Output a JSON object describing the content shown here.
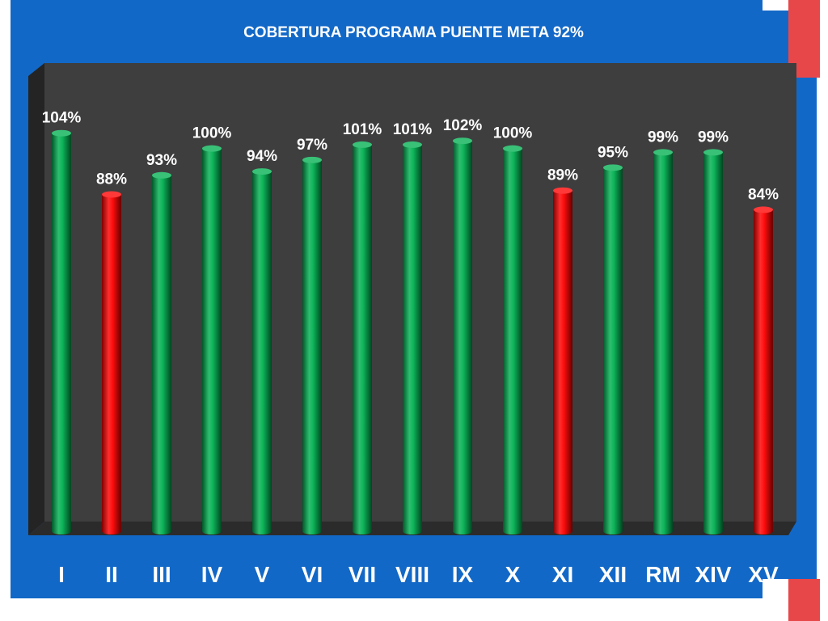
{
  "chart_data": {
    "type": "bar",
    "title": "COBERTURA PROGRAMA PUENTE META 92%",
    "xlabel": "",
    "ylabel": "",
    "categories": [
      "I",
      "II",
      "III",
      "IV",
      "V",
      "VI",
      "VII",
      "VIII",
      "IX",
      "X",
      "XI",
      "XII",
      "RM",
      "XIV",
      "XV"
    ],
    "values": [
      104,
      88,
      93,
      100,
      94,
      97,
      101,
      101,
      102,
      100,
      89,
      95,
      99,
      99,
      84
    ],
    "data_labels": [
      "104%",
      "88%",
      "93%",
      "100%",
      "94%",
      "97%",
      "101%",
      "101%",
      "102%",
      "100%",
      "89%",
      "95%",
      "99%",
      "99%",
      "84%"
    ],
    "bar_colors": [
      "#00b050",
      "#ff0000",
      "#00b050",
      "#00b050",
      "#00b050",
      "#00b050",
      "#00b050",
      "#00b050",
      "#00b050",
      "#00b050",
      "#ff0000",
      "#00b050",
      "#00b050",
      "#00b050",
      "#ff0000"
    ],
    "ylim": [
      0,
      120
    ],
    "grid": false
  },
  "colors": {
    "frame": "#1268c7",
    "plot_background": "#3e3e3e",
    "accent": "#e8474a",
    "text": "#ffffff"
  }
}
